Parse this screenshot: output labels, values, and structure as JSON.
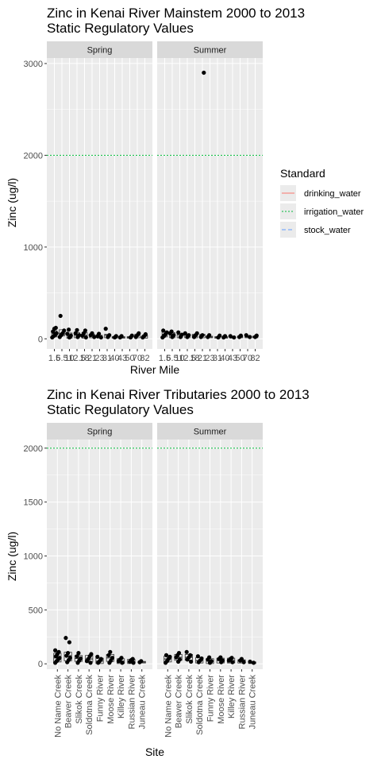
{
  "colors": {
    "panel_bg": "#ebebeb",
    "strip_bg": "#d9d9d9",
    "grid": "#ffffff",
    "points": "#000000",
    "drinking_water": "#f8766d",
    "irrigation_water": "#00ba38",
    "stock_water": "#619cff"
  },
  "legend": {
    "title": "Standard",
    "items": [
      {
        "label": "drinking_water",
        "color": "#f8766d",
        "dash": "solid"
      },
      {
        "label": "irrigation_water",
        "color": "#00ba38",
        "dash": "dotted"
      },
      {
        "label": "stock_water",
        "color": "#619cff",
        "dash": "dashed"
      }
    ]
  },
  "chart_data": [
    {
      "type": "scatter",
      "title": "Zinc in Kenai River Mainstem  2000 to 2013",
      "subtitle": "Static Regulatory Values",
      "xlabel": "River Mile",
      "ylabel": "Zinc (ug/l)",
      "facets": [
        "Spring",
        "Summer"
      ],
      "ylim": [
        -110,
        3060
      ],
      "yticks": [
        0,
        1000,
        2000,
        3000
      ],
      "x_tick_labels": [
        "1.5",
        "6.5",
        "10",
        "12.5",
        "18",
        "21",
        "23",
        "31",
        "40",
        "43",
        "50",
        "70",
        "82"
      ],
      "hlines": [
        {
          "name": "irrigation_water",
          "value": 2000
        }
      ],
      "series": [
        {
          "facet": "Spring",
          "points": [
            [
              0,
              15
            ],
            [
              0,
              30
            ],
            [
              0,
              45
            ],
            [
              0,
              60
            ],
            [
              0,
              80
            ],
            [
              0,
              110
            ],
            [
              0,
              120
            ],
            [
              1,
              20
            ],
            [
              1,
              40
            ],
            [
              1,
              60
            ],
            [
              1,
              90
            ],
            [
              1,
              250
            ],
            [
              2,
              15
            ],
            [
              2,
              35
            ],
            [
              2,
              55
            ],
            [
              2,
              100
            ],
            [
              3,
              20
            ],
            [
              3,
              40
            ],
            [
              3,
              60
            ],
            [
              3,
              95
            ],
            [
              4,
              15
            ],
            [
              4,
              35
            ],
            [
              4,
              60
            ],
            [
              4,
              90
            ],
            [
              5,
              20
            ],
            [
              5,
              40
            ],
            [
              5,
              60
            ],
            [
              6,
              15
            ],
            [
              6,
              30
            ],
            [
              6,
              55
            ],
            [
              7,
              20
            ],
            [
              7,
              40
            ],
            [
              7,
              110
            ],
            [
              8,
              15
            ],
            [
              8,
              30
            ],
            [
              9,
              15
            ],
            [
              9,
              30
            ],
            [
              10,
              15
            ],
            [
              10,
              35
            ],
            [
              11,
              20
            ],
            [
              11,
              40
            ],
            [
              11,
              60
            ],
            [
              12,
              15
            ],
            [
              12,
              30
            ],
            [
              12,
              50
            ]
          ]
        },
        {
          "facet": "Summer",
          "points": [
            [
              0,
              15
            ],
            [
              0,
              30
            ],
            [
              0,
              50
            ],
            [
              0,
              70
            ],
            [
              0,
              90
            ],
            [
              1,
              20
            ],
            [
              1,
              40
            ],
            [
              1,
              60
            ],
            [
              1,
              80
            ],
            [
              2,
              20
            ],
            [
              2,
              45
            ],
            [
              2,
              70
            ],
            [
              3,
              20
            ],
            [
              3,
              40
            ],
            [
              3,
              60
            ],
            [
              4,
              20
            ],
            [
              4,
              40
            ],
            [
              4,
              60
            ],
            [
              5,
              20
            ],
            [
              5,
              40
            ],
            [
              5,
              2900
            ],
            [
              6,
              20
            ],
            [
              6,
              40
            ],
            [
              7,
              15
            ],
            [
              7,
              35
            ],
            [
              8,
              15
            ],
            [
              8,
              30
            ],
            [
              9,
              15
            ],
            [
              9,
              30
            ],
            [
              10,
              20
            ],
            [
              10,
              35
            ],
            [
              11,
              20
            ],
            [
              11,
              40
            ],
            [
              12,
              20
            ],
            [
              12,
              35
            ]
          ]
        }
      ]
    },
    {
      "type": "scatter",
      "title": "Zinc in Kenai River Tributaries  2000 to 2013",
      "subtitle": "Static Regulatory Values",
      "xlabel": "Site",
      "ylabel": "Zinc (ug/l)",
      "facets": [
        "Spring",
        "Summer"
      ],
      "ylim": [
        -50,
        2080
      ],
      "yticks": [
        0,
        500,
        1000,
        1500,
        2000
      ],
      "x_tick_labels": [
        "No Name Creek",
        "Beaver Creek",
        "Slikok Creek",
        "Soldotna Creek",
        "Funny River",
        "Moose River",
        "Killey River",
        "Russian River",
        "Juneau Creek"
      ],
      "hlines": [
        {
          "name": "irrigation_water",
          "value": 2000
        }
      ],
      "series": [
        {
          "facet": "Spring",
          "points": [
            [
              0,
              10
            ],
            [
              0,
              25
            ],
            [
              0,
              40
            ],
            [
              0,
              55
            ],
            [
              0,
              70
            ],
            [
              0,
              90
            ],
            [
              0,
              110
            ],
            [
              0,
              125
            ],
            [
              1,
              15
            ],
            [
              1,
              35
            ],
            [
              1,
              55
            ],
            [
              1,
              75
            ],
            [
              1,
              100
            ],
            [
              1,
              200
            ],
            [
              1,
              240
            ],
            [
              2,
              10
            ],
            [
              2,
              30
            ],
            [
              2,
              50
            ],
            [
              2,
              70
            ],
            [
              2,
              100
            ],
            [
              3,
              10
            ],
            [
              3,
              25
            ],
            [
              3,
              45
            ],
            [
              3,
              70
            ],
            [
              3,
              90
            ],
            [
              4,
              10
            ],
            [
              4,
              25
            ],
            [
              4,
              45
            ],
            [
              4,
              65
            ],
            [
              5,
              10
            ],
            [
              5,
              30
            ],
            [
              5,
              55
            ],
            [
              5,
              80
            ],
            [
              5,
              110
            ],
            [
              6,
              10
            ],
            [
              6,
              25
            ],
            [
              6,
              40
            ],
            [
              6,
              55
            ],
            [
              7,
              10
            ],
            [
              7,
              20
            ],
            [
              7,
              35
            ],
            [
              7,
              45
            ],
            [
              8,
              15
            ],
            [
              8,
              25
            ]
          ]
        },
        {
          "facet": "Summer",
          "points": [
            [
              0,
              10
            ],
            [
              0,
              25
            ],
            [
              0,
              45
            ],
            [
              0,
              65
            ],
            [
              0,
              80
            ],
            [
              1,
              20
            ],
            [
              1,
              40
            ],
            [
              1,
              60
            ],
            [
              1,
              80
            ],
            [
              1,
              100
            ],
            [
              2,
              20
            ],
            [
              2,
              40
            ],
            [
              2,
              60
            ],
            [
              2,
              80
            ],
            [
              2,
              110
            ],
            [
              3,
              15
            ],
            [
              3,
              30
            ],
            [
              3,
              50
            ],
            [
              3,
              70
            ],
            [
              4,
              10
            ],
            [
              4,
              25
            ],
            [
              4,
              40
            ],
            [
              4,
              60
            ],
            [
              5,
              15
            ],
            [
              5,
              30
            ],
            [
              5,
              45
            ],
            [
              5,
              60
            ],
            [
              6,
              15
            ],
            [
              6,
              30
            ],
            [
              6,
              45
            ],
            [
              6,
              55
            ],
            [
              7,
              15
            ],
            [
              7,
              30
            ],
            [
              7,
              45
            ],
            [
              8,
              10
            ],
            [
              8,
              20
            ]
          ]
        }
      ]
    }
  ]
}
